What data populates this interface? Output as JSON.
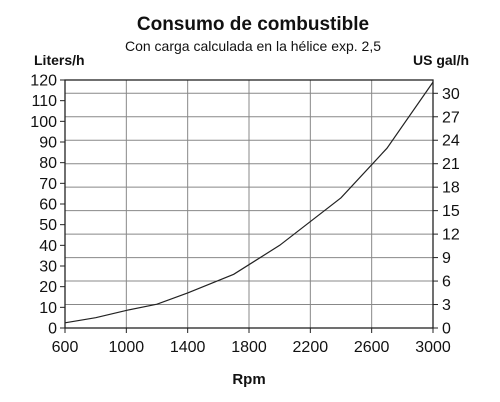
{
  "chart_data": {
    "type": "line",
    "title": "Consumo de combustible",
    "subtitle": "Con carga calculada en la hélice exp. 2,5",
    "ylabel_left": "Liters/h",
    "ylabel_right": "US gal/h",
    "xlabel": "Rpm",
    "xlim": [
      600,
      3000
    ],
    "ylim_left": [
      0,
      120
    ],
    "ylim_right": [
      0,
      31.7
    ],
    "x_ticks": [
      600,
      1000,
      1400,
      1800,
      2200,
      2600,
      3000
    ],
    "y_ticks_left": [
      0,
      10,
      20,
      30,
      40,
      50,
      60,
      70,
      80,
      90,
      100,
      110,
      120
    ],
    "y_ticks_right": [
      0,
      3,
      6,
      9,
      12,
      15,
      18,
      21,
      24,
      27,
      30
    ],
    "grid": true,
    "series": [
      {
        "x": [
          600,
          800,
          1000,
          1200,
          1400,
          1700,
          2000,
          2400,
          2700,
          3000
        ],
        "values": [
          2.5,
          5,
          8.5,
          11.5,
          17,
          26,
          40,
          63,
          87,
          119
        ]
      }
    ]
  }
}
